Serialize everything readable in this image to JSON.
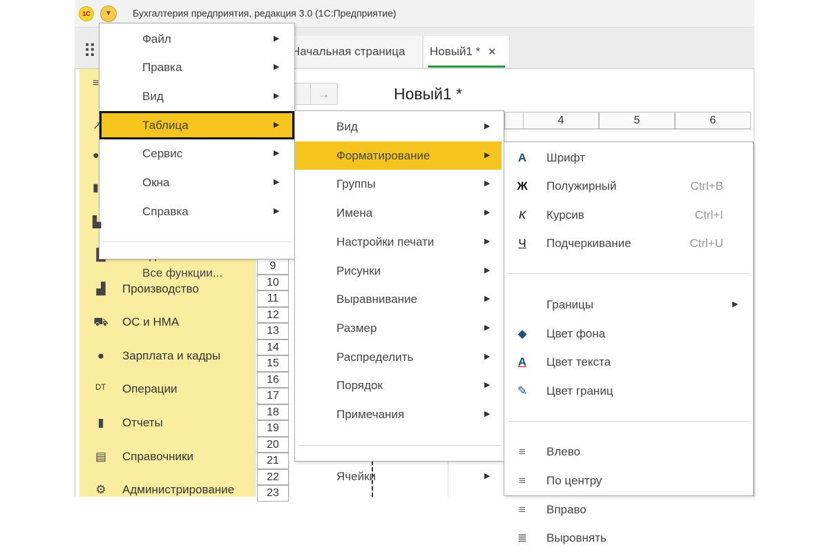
{
  "window": {
    "title": "Бухгалтерия предприятия, редакция 3.0  (1С:Предприятие)",
    "logo": "1С"
  },
  "tabs": [
    {
      "label": "Начальная страница",
      "active": false
    },
    {
      "label": "Новый1 *",
      "active": true,
      "close": "✕"
    }
  ],
  "colors": {
    "accent": "#f5c51e",
    "sidebar": "#fbeda0",
    "active_tab_underline": "#1a9a3a"
  },
  "document": {
    "title": "Новый1 *",
    "nav_forward": "→"
  },
  "grid": {
    "columns": [
      "4",
      "5",
      "6"
    ],
    "rows": [
      "9",
      "10",
      "11",
      "12",
      "13",
      "14",
      "15",
      "16",
      "17",
      "18",
      "19",
      "20",
      "21",
      "22",
      "23"
    ]
  },
  "sidebar": {
    "items": [
      {
        "label": "Склад",
        "icon": "warehouse-icon"
      },
      {
        "label": "Производство",
        "icon": "factory-icon"
      },
      {
        "label": "ОС и НМА",
        "icon": "truck-icon"
      },
      {
        "label": "Зарплата и кадры",
        "icon": "person-icon"
      },
      {
        "label": "Операции",
        "icon": "dt-kt-icon"
      },
      {
        "label": "Отчеты",
        "icon": "bar-chart-icon"
      },
      {
        "label": "Справочники",
        "icon": "books-icon"
      },
      {
        "label": "Администрирование",
        "icon": "gear-icon"
      }
    ]
  },
  "main_menu": {
    "items": [
      {
        "label": "Файл",
        "submenu": true
      },
      {
        "label": "Правка",
        "submenu": true
      },
      {
        "label": "Вид",
        "submenu": true
      },
      {
        "label": "Таблица",
        "submenu": true,
        "highlighted": true
      },
      {
        "label": "Сервис",
        "submenu": true
      },
      {
        "label": "Окна",
        "submenu": true
      },
      {
        "label": "Справка",
        "submenu": true
      },
      {
        "separator": true
      },
      {
        "label": "Все функции..."
      }
    ]
  },
  "table_menu": {
    "items": [
      {
        "label": "Вид",
        "submenu": true
      },
      {
        "label": "Форматирование",
        "submenu": true,
        "highlighted": true
      },
      {
        "label": "Группы",
        "submenu": true
      },
      {
        "label": "Имена",
        "submenu": true
      },
      {
        "label": "Настройки печати",
        "submenu": true
      },
      {
        "label": "Рисунки",
        "submenu": true
      },
      {
        "label": "Выравнивание",
        "submenu": true
      },
      {
        "label": "Размер",
        "submenu": true
      },
      {
        "label": "Распределить",
        "submenu": true
      },
      {
        "label": "Порядок",
        "submenu": true
      },
      {
        "label": "Примечания",
        "submenu": true
      },
      {
        "separator": true
      },
      {
        "label": "Ячейки",
        "submenu": true
      }
    ]
  },
  "format_menu": {
    "items": [
      {
        "label": "Шрифт",
        "icon": "font-icon"
      },
      {
        "label": "Полужирный",
        "icon": "bold-icon",
        "shortcut": "Ctrl+B"
      },
      {
        "label": "Курсив",
        "icon": "italic-icon",
        "shortcut": "Ctrl+I"
      },
      {
        "label": "Подчеркивание",
        "icon": "underline-icon",
        "shortcut": "Ctrl+U"
      },
      {
        "separator": true
      },
      {
        "label": "Границы",
        "submenu": true
      },
      {
        "label": "Цвет фона",
        "icon": "fill-color-icon"
      },
      {
        "label": "Цвет текста",
        "icon": "text-color-icon"
      },
      {
        "label": "Цвет границ",
        "icon": "border-color-icon"
      },
      {
        "separator": true
      },
      {
        "label": "Влево",
        "icon": "align-left-icon"
      },
      {
        "label": "По центру",
        "icon": "align-center-icon"
      },
      {
        "label": "Вправо",
        "icon": "align-right-icon"
      },
      {
        "label": "Выровнять",
        "icon": "justify-icon"
      }
    ]
  }
}
